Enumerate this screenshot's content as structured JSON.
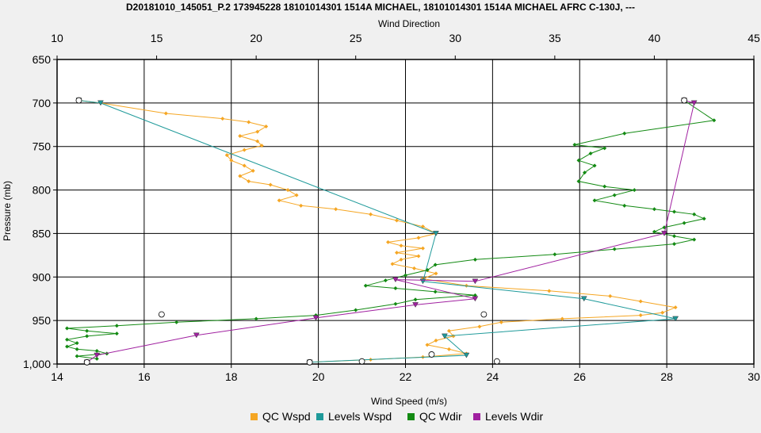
{
  "chart_data": {
    "type": "line",
    "title": "D20181010_145051_P.2 173945228 18101014301 1514A MICHAEL, 18101014301 1514A MICHAEL AFRC C-130J, ---",
    "xlabel": "Wind Speed (m/s)",
    "x2label": "Wind Direction",
    "ylabel": "Pressure (mb)",
    "xlim": [
      14,
      30
    ],
    "x2lim": [
      10,
      45
    ],
    "ylim": [
      650,
      1000
    ],
    "y_inverted": true,
    "grid": true,
    "legend_position": "bottom",
    "x_ticks": [
      "14",
      "16",
      "18",
      "20",
      "22",
      "24",
      "26",
      "28",
      "30"
    ],
    "x2_ticks": [
      "10",
      "15",
      "20",
      "25",
      "30",
      "35",
      "40",
      "45"
    ],
    "y_ticks": [
      "650",
      "700",
      "750",
      "800",
      "850",
      "900",
      "950",
      "1,000"
    ],
    "series": [
      {
        "name": "QC Wspd",
        "color": "#f5a623",
        "axis": "bottom",
        "marker": "diamond",
        "points": [
          [
            14.5,
            697
          ],
          [
            15,
            700
          ],
          [
            16.5,
            712
          ],
          [
            17.8,
            718
          ],
          [
            18.4,
            722
          ],
          [
            18.8,
            727
          ],
          [
            18.6,
            733
          ],
          [
            18.2,
            738
          ],
          [
            18.6,
            744
          ],
          [
            18.7,
            749
          ],
          [
            18.3,
            754
          ],
          [
            17.9,
            760
          ],
          [
            18,
            766
          ],
          [
            18.3,
            772
          ],
          [
            18.5,
            778
          ],
          [
            18.2,
            784
          ],
          [
            18.4,
            790
          ],
          [
            18.9,
            794
          ],
          [
            19.3,
            800
          ],
          [
            19.5,
            806
          ],
          [
            19.1,
            812
          ],
          [
            19.6,
            818
          ],
          [
            20.4,
            822
          ],
          [
            21.2,
            828
          ],
          [
            21.8,
            835
          ],
          [
            22.4,
            842
          ],
          [
            22.7,
            850
          ],
          [
            22.3,
            855
          ],
          [
            21.6,
            860
          ],
          [
            21.9,
            864
          ],
          [
            22.4,
            867
          ],
          [
            21.8,
            872
          ],
          [
            22.3,
            876
          ],
          [
            21.9,
            880
          ],
          [
            21.7,
            885
          ],
          [
            22.2,
            890
          ],
          [
            22.7,
            896
          ],
          [
            22.4,
            902
          ],
          [
            23.4,
            910
          ],
          [
            25.3,
            916
          ],
          [
            26.7,
            922
          ],
          [
            27.4,
            928
          ],
          [
            28.2,
            935
          ],
          [
            27.9,
            941
          ],
          [
            27.4,
            944
          ],
          [
            25.6,
            948
          ],
          [
            24.2,
            952
          ],
          [
            23.7,
            957
          ],
          [
            23.0,
            962
          ],
          [
            23.1,
            968
          ],
          [
            22.7,
            973
          ],
          [
            22.5,
            978
          ],
          [
            23.0,
            983
          ],
          [
            23.4,
            988
          ],
          [
            22.4,
            992
          ],
          [
            21.2,
            995
          ],
          [
            19.8,
            998
          ]
        ]
      },
      {
        "name": "Levels Wspd",
        "color": "#1f9a9a",
        "axis": "bottom",
        "marker": "triangle",
        "points": [
          [
            14.5,
            697
          ],
          [
            15,
            700
          ],
          [
            22.7,
            850
          ],
          [
            22.4,
            905
          ],
          [
            26.1,
            925
          ],
          [
            28.2,
            948
          ],
          [
            22.9,
            968
          ],
          [
            23.4,
            990
          ],
          [
            19.8,
            998
          ]
        ]
      },
      {
        "name": "QC Wdir",
        "color": "#138a13",
        "axis": "top",
        "marker": "diamond",
        "points": [
          [
            41.5,
            697
          ],
          [
            43,
            720
          ],
          [
            38.5,
            735
          ],
          [
            36,
            748
          ],
          [
            37.5,
            752
          ],
          [
            36.8,
            758
          ],
          [
            36.2,
            766
          ],
          [
            37,
            772
          ],
          [
            36.5,
            780
          ],
          [
            36.2,
            790
          ],
          [
            37.5,
            796
          ],
          [
            39,
            800
          ],
          [
            38,
            806
          ],
          [
            37,
            812
          ],
          [
            38.5,
            818
          ],
          [
            40,
            822
          ],
          [
            41,
            825
          ],
          [
            42,
            828
          ],
          [
            42.5,
            833
          ],
          [
            41.5,
            838
          ],
          [
            40.5,
            843
          ],
          [
            40,
            848
          ],
          [
            41,
            853
          ],
          [
            42,
            857
          ],
          [
            41,
            862
          ],
          [
            38,
            868
          ],
          [
            35,
            874
          ],
          [
            31,
            880
          ],
          [
            29,
            886
          ],
          [
            28.6,
            892
          ],
          [
            27.5,
            898
          ],
          [
            26.5,
            904
          ],
          [
            25.5,
            910
          ],
          [
            27,
            913
          ],
          [
            29,
            917
          ],
          [
            31,
            921
          ],
          [
            28,
            926
          ],
          [
            27,
            931
          ],
          [
            25,
            938
          ],
          [
            23,
            944
          ],
          [
            20,
            948
          ],
          [
            16,
            952
          ],
          [
            13,
            956
          ],
          [
            10.5,
            959
          ],
          [
            11.5,
            962
          ],
          [
            13,
            965
          ],
          [
            11.5,
            968
          ],
          [
            10.5,
            972
          ],
          [
            11,
            976
          ],
          [
            10.5,
            980
          ],
          [
            11,
            983
          ],
          [
            12,
            985
          ],
          [
            12.5,
            988
          ],
          [
            11,
            991
          ],
          [
            12,
            994
          ]
        ]
      },
      {
        "name": "Levels Wdir",
        "color": "#a020a0",
        "axis": "top",
        "marker": "triangle",
        "points": [
          [
            41.5,
            697
          ],
          [
            42,
            700
          ],
          [
            40.5,
            850
          ],
          [
            31,
            905
          ],
          [
            27,
            903
          ],
          [
            31,
            925
          ],
          [
            28,
            932
          ],
          [
            23,
            947
          ],
          [
            17,
            967
          ],
          [
            12,
            990
          ],
          [
            11.5,
            998
          ]
        ]
      }
    ],
    "extra_circles": {
      "note": "Open circle markers without connecting lines",
      "wspd": [
        [
          16.4,
          943
        ],
        [
          23.8,
          943
        ],
        [
          24.1,
          997
        ],
        [
          22.6,
          989
        ],
        [
          21.0,
          997
        ]
      ]
    }
  },
  "legend": [
    {
      "label": "QC Wspd",
      "color": "#f5a623"
    },
    {
      "label": "Levels Wspd",
      "color": "#1f9a9a"
    },
    {
      "label": "QC Wdir",
      "color": "#138a13"
    },
    {
      "label": "Levels Wdir",
      "color": "#a020a0"
    }
  ]
}
